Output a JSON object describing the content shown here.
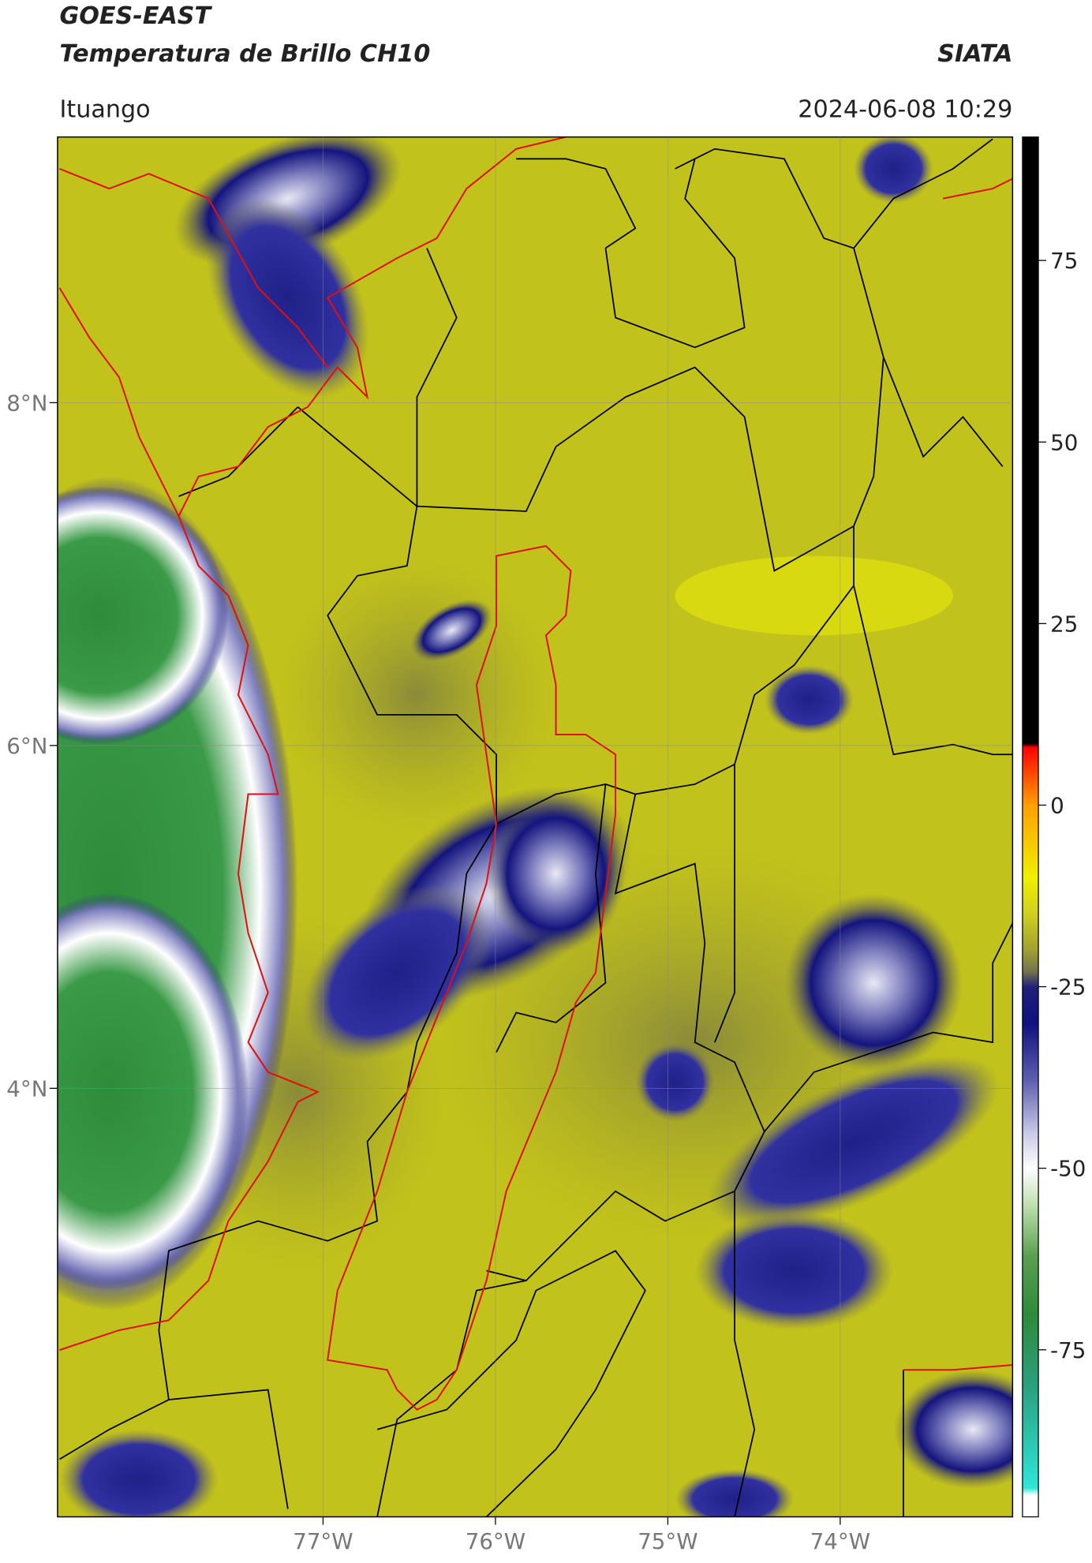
{
  "chart_data": {
    "type": "satellite-map",
    "title": "GOES-EAST",
    "subtitle": "Temperatura de Brillo CH10",
    "source": "SIATA",
    "location": "Ituango",
    "datetime": "2024-06-08 10:29",
    "xlim": [
      -78.54,
      -73.0
    ],
    "ylim": [
      1.5,
      9.55
    ],
    "xticks": [
      {
        "value": -77,
        "label": "77°W"
      },
      {
        "value": -76,
        "label": "76°W"
      },
      {
        "value": -75,
        "label": "75°W"
      },
      {
        "value": -74,
        "label": "74°W"
      }
    ],
    "yticks": [
      {
        "value": 8,
        "label": "8°N"
      },
      {
        "value": 6,
        "label": "6°N"
      },
      {
        "value": 4,
        "label": "4°N"
      }
    ],
    "grid": true,
    "colorbar": {
      "clim": [
        -98,
        92
      ],
      "ticks": [
        75,
        50,
        25,
        0,
        -25,
        -50,
        -75
      ],
      "colormap": [
        {
          "value": -98,
          "color": "#ffffff"
        },
        {
          "value": -95,
          "color": "#ffffff"
        },
        {
          "value": -94,
          "color": "#2ee6d8"
        },
        {
          "value": -80,
          "color": "#2aa080"
        },
        {
          "value": -70,
          "color": "#2e8b3a"
        },
        {
          "value": -62,
          "color": "#5aa050"
        },
        {
          "value": -55,
          "color": "#c0e0b0"
        },
        {
          "value": -50,
          "color": "#ffffff"
        },
        {
          "value": -45,
          "color": "#c8c8e8"
        },
        {
          "value": -38,
          "color": "#6060b0"
        },
        {
          "value": -30,
          "color": "#101080"
        },
        {
          "value": -25,
          "color": "#20207a"
        },
        {
          "value": -23,
          "color": "#707050"
        },
        {
          "value": -20,
          "color": "#a0a030"
        },
        {
          "value": -15,
          "color": "#d0d020"
        },
        {
          "value": -10,
          "color": "#f0f000"
        },
        {
          "value": 0,
          "color": "#ffa000"
        },
        {
          "value": 8,
          "color": "#ff0000"
        },
        {
          "value": 8.5,
          "color": "#000000"
        },
        {
          "value": 92,
          "color": "#000000"
        }
      ]
    }
  }
}
